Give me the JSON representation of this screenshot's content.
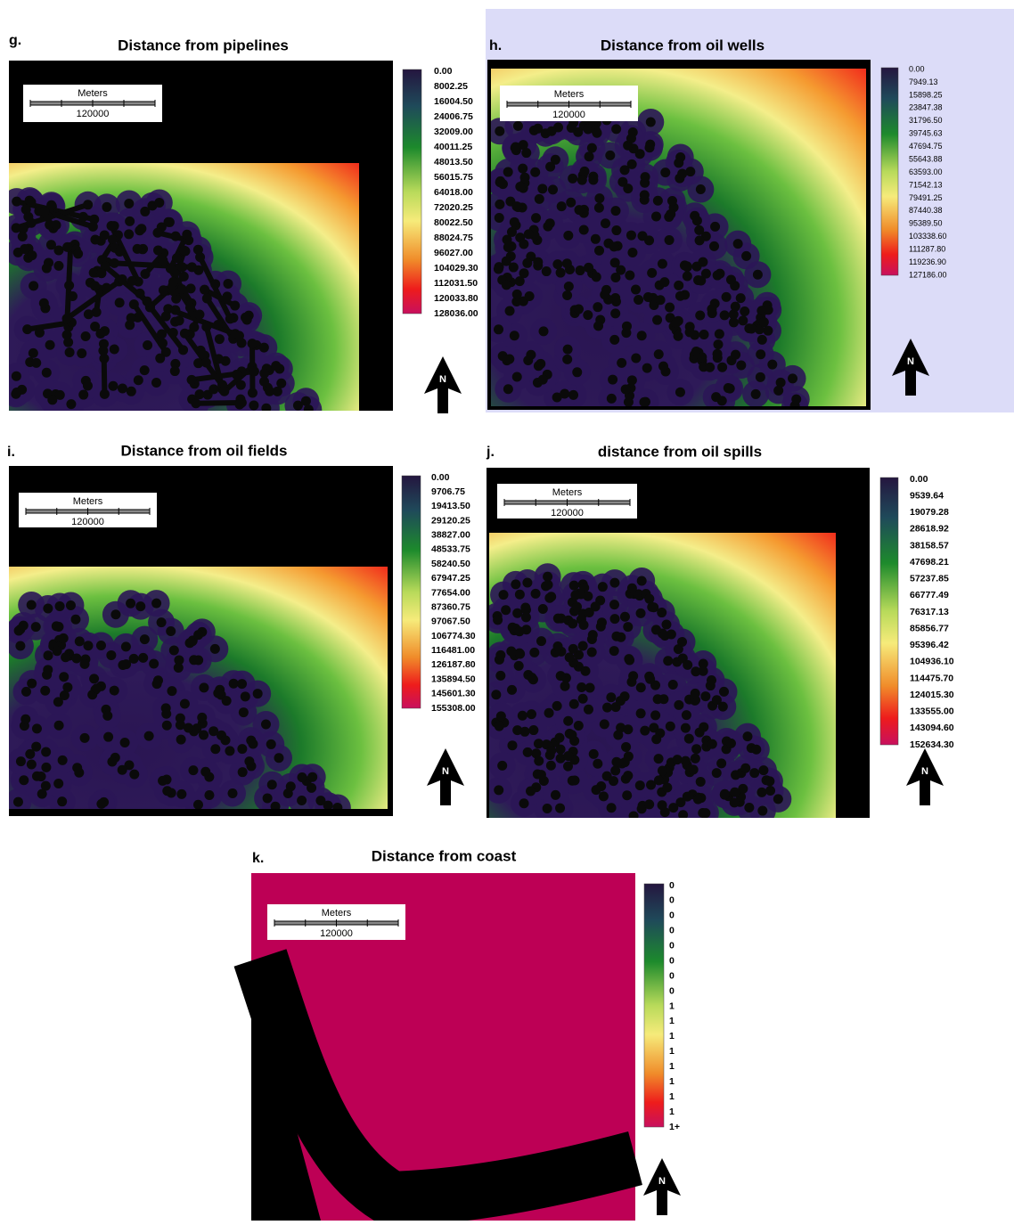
{
  "panels": [
    {
      "letter": "g.",
      "title": "Distance from pipelines",
      "scale_unit": "Meters",
      "scale_distance": "120000",
      "north": "N",
      "legend": [
        "0.00",
        "8002.25",
        "16004.50",
        "24006.75",
        "32009.00",
        "40011.25",
        "48013.50",
        "56015.75",
        "64018.00",
        "72020.25",
        "80022.50",
        "88024.75",
        "96027.00",
        "104029.30",
        "112031.50",
        "120033.80",
        "128036.00"
      ]
    },
    {
      "letter": "h.",
      "title": "Distance from oil wells",
      "scale_unit": "Meters",
      "scale_distance": "120000",
      "north": "N",
      "legend": [
        "0.00",
        "7949.13",
        "15898.25",
        "23847.38",
        "31796.50",
        "39745.63",
        "47694.75",
        "55643.88",
        "63593.00",
        "71542.13",
        "79491.25",
        "87440.38",
        "95389.50",
        "103338.60",
        "111287.80",
        "119236.90",
        "127186.00"
      ]
    },
    {
      "letter": "i.",
      "title": "Distance from oil fields",
      "scale_unit": "Meters",
      "scale_distance": "120000",
      "north": "N",
      "legend": [
        "0.00",
        "9706.75",
        "19413.50",
        "29120.25",
        "38827.00",
        "48533.75",
        "58240.50",
        "67947.25",
        "77654.00",
        "87360.75",
        "97067.50",
        "106774.30",
        "116481.00",
        "126187.80",
        "135894.50",
        "145601.30",
        "155308.00"
      ]
    },
    {
      "letter": "j.",
      "title": "distance from oil spills",
      "scale_unit": "Meters",
      "scale_distance": "120000",
      "north": "N",
      "legend": [
        "0.00",
        "9539.64",
        "19079.28",
        "28618.92",
        "38158.57",
        "47698.21",
        "57237.85",
        "66777.49",
        "76317.13",
        "85856.77",
        "95396.42",
        "104936.10",
        "114475.70",
        "124015.30",
        "133555.00",
        "143094.60",
        "152634.30"
      ]
    },
    {
      "letter": "k.",
      "title": "Distance from coast",
      "scale_unit": "Meters",
      "scale_distance": "120000",
      "north": "N",
      "legend": [
        "0",
        "0",
        "0",
        "0",
        "0",
        "0",
        "0",
        "0",
        "1",
        "1",
        "1",
        "1",
        "1",
        "1",
        "1",
        "1",
        "1+"
      ]
    }
  ]
}
